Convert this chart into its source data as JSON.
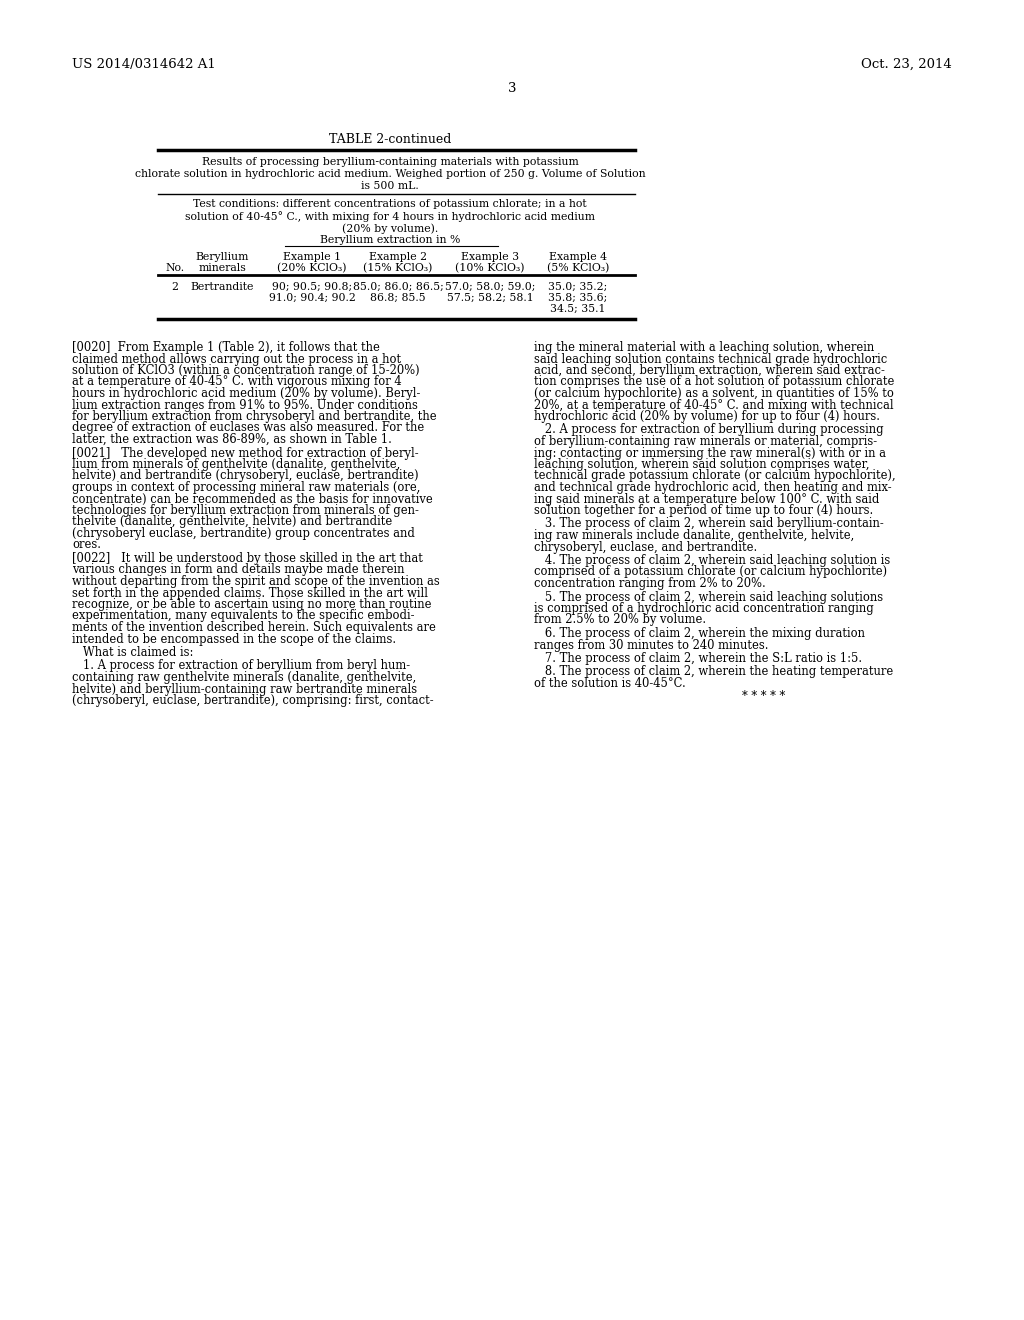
{
  "header_left": "US 2014/0314642 A1",
  "header_right": "Oct. 23, 2014",
  "page_number": "3",
  "table_title": "TABLE 2-continued",
  "table_caption_lines": [
    "Results of processing beryllium-containing materials with potassium",
    "chlorate solution in hydrochloric acid medium. Weighed portion of 250 g. Volume of Solution",
    "is 500 mL."
  ],
  "test_condition_lines": [
    "Test conditions: different concentrations of potassium chlorate; in a hot",
    "solution of 40-45° C., with mixing for 4 hours in hydrochloric acid medium",
    "(20% by volume).",
    "Beryllium extraction in %"
  ],
  "col_headers_line1": [
    "",
    "Beryllium",
    "Example 1",
    "Example 2",
    "Example 3",
    "Example 4"
  ],
  "col_headers_line2": [
    "No.",
    "minerals",
    "(20% KClO₃)",
    "(15% KClO₃)",
    "(10% KClO₃)",
    "(5% KClO₃)"
  ],
  "row_no": "2",
  "row_mineral": "Bertrandite",
  "row_ex1_lines": [
    "90; 90.5; 90.8;",
    "91.0; 90.4; 90.2"
  ],
  "row_ex2_lines": [
    "85.0; 86.0; 86.5;",
    "86.8; 85.5"
  ],
  "row_ex3_lines": [
    "57.0; 58.0; 59.0;",
    "57.5; 58.2; 58.1"
  ],
  "row_ex4_lines": [
    "35.0; 35.2;",
    "35.8; 35.6;",
    "34.5; 35.1"
  ],
  "left_col": [
    {
      "tag": "[0020]",
      "lines": [
        "  From Example 1 (Table 2), it follows that the",
        "claimed method allows carrying out the process in a hot",
        "solution of KClO3 (within a concentration range of 15-20%)",
        "at a temperature of 40-45° C. with vigorous mixing for 4",
        "hours in hydrochloric acid medium (20% by volume). Beryl-",
        "lium extraction ranges from 91% to 95%. Under conditions",
        "for beryllium extraction from chrysoberyl and bertrandite, the",
        "degree of extraction of euclases was also measured. For the",
        "latter, the extraction was 86-89%, as shown in Table 1."
      ]
    },
    {
      "tag": "[0021]",
      "lines": [
        "   The developed new method for extraction of beryl-",
        "lium from minerals of genthelvite (danalite, genthelvite,",
        "helvite) and bertrandite (chrysoberyl, euclase, bertrandite)",
        "groups in context of processing mineral raw materials (ore,",
        "concentrate) can be recommended as the basis for innovative",
        "technologies for beryllium extraction from minerals of gen-",
        "thelvite (danalite, genthelvite, helvite) and bertrandite",
        "(chrysoberyl euclase, bertrandite) group concentrates and",
        "ores."
      ]
    },
    {
      "tag": "[0022]",
      "lines": [
        "   It will be understood by those skilled in the art that",
        "various changes in form and details maybe made therein",
        "without departing from the spirit and scope of the invention as",
        "set forth in the appended claims. Those skilled in the art will",
        "recognize, or be able to ascertain using no more than routine",
        "experimentation, many equivalents to the specific embodi-",
        "ments of the invention described herein. Such equivalents are",
        "intended to be encompassed in the scope of the claims."
      ]
    },
    {
      "tag": "",
      "lines": [
        "   What is claimed is:"
      ]
    },
    {
      "tag": "",
      "lines": [
        "   1. A process for extraction of beryllium from beryl hum-",
        "containing raw genthelvite minerals (danalite, genthelvite,",
        "helvite) and beryllium-containing raw bertrandite minerals",
        "(chrysoberyl, euclase, bertrandite), comprising: first, contact-"
      ]
    }
  ],
  "right_col": [
    {
      "tag": "",
      "lines": [
        "ing the mineral material with a leaching solution, wherein",
        "said leaching solution contains technical grade hydrochloric",
        "acid, and second, beryllium extraction, wherein said extrac-",
        "tion comprises the use of a hot solution of potassium chlorate",
        "(or calcium hypochlorite) as a solvent, in quantities of 15% to",
        "20%, at a temperature of 40-45° C. and mixing with technical",
        "hydrochloric acid (20% by volume) for up to four (4) hours."
      ]
    },
    {
      "tag": "",
      "lines": [
        "   2. A process for extraction of beryllium during processing",
        "of beryllium-containing raw minerals or material, compris-",
        "ing: contacting or immersing the raw mineral(s) with or in a",
        "leaching solution, wherein said solution comprises water,",
        "technical grade potassium chlorate (or calcium hypochlorite),",
        "and technical grade hydrochloric acid, then heating and mix-",
        "ing said minerals at a temperature below 100° C. with said",
        "solution together for a period of time up to four (4) hours."
      ]
    },
    {
      "tag": "",
      "lines": [
        "   3. The process of claim 2, wherein said beryllium-contain-",
        "ing raw minerals include danalite, genthelvite, helvite,",
        "chrysoberyl, euclase, and bertrandite."
      ]
    },
    {
      "tag": "",
      "lines": [
        "   4. The process of claim 2, wherein said leaching solution is",
        "comprised of a potassium chlorate (or calcium hypochlorite)",
        "concentration ranging from 2% to 20%."
      ]
    },
    {
      "tag": "",
      "lines": [
        "   5. The process of claim 2, wherein said leaching solutions",
        "is comprised of a hydrochloric acid concentration ranging",
        "from 2.5% to 20% by volume."
      ]
    },
    {
      "tag": "",
      "lines": [
        "   6. The process of claim 2, wherein the mixing duration",
        "ranges from 30 minutes to 240 minutes."
      ]
    },
    {
      "tag": "",
      "lines": [
        "   7. The process of claim 2, wherein the S:L ratio is 1:5."
      ]
    },
    {
      "tag": "",
      "lines": [
        "   8. The process of claim 2, wherein the heating temperature",
        "of the solution is 40-45°C."
      ]
    },
    {
      "tag": "",
      "lines": [
        "* * * * *"
      ]
    }
  ],
  "bg_color": "#ffffff"
}
